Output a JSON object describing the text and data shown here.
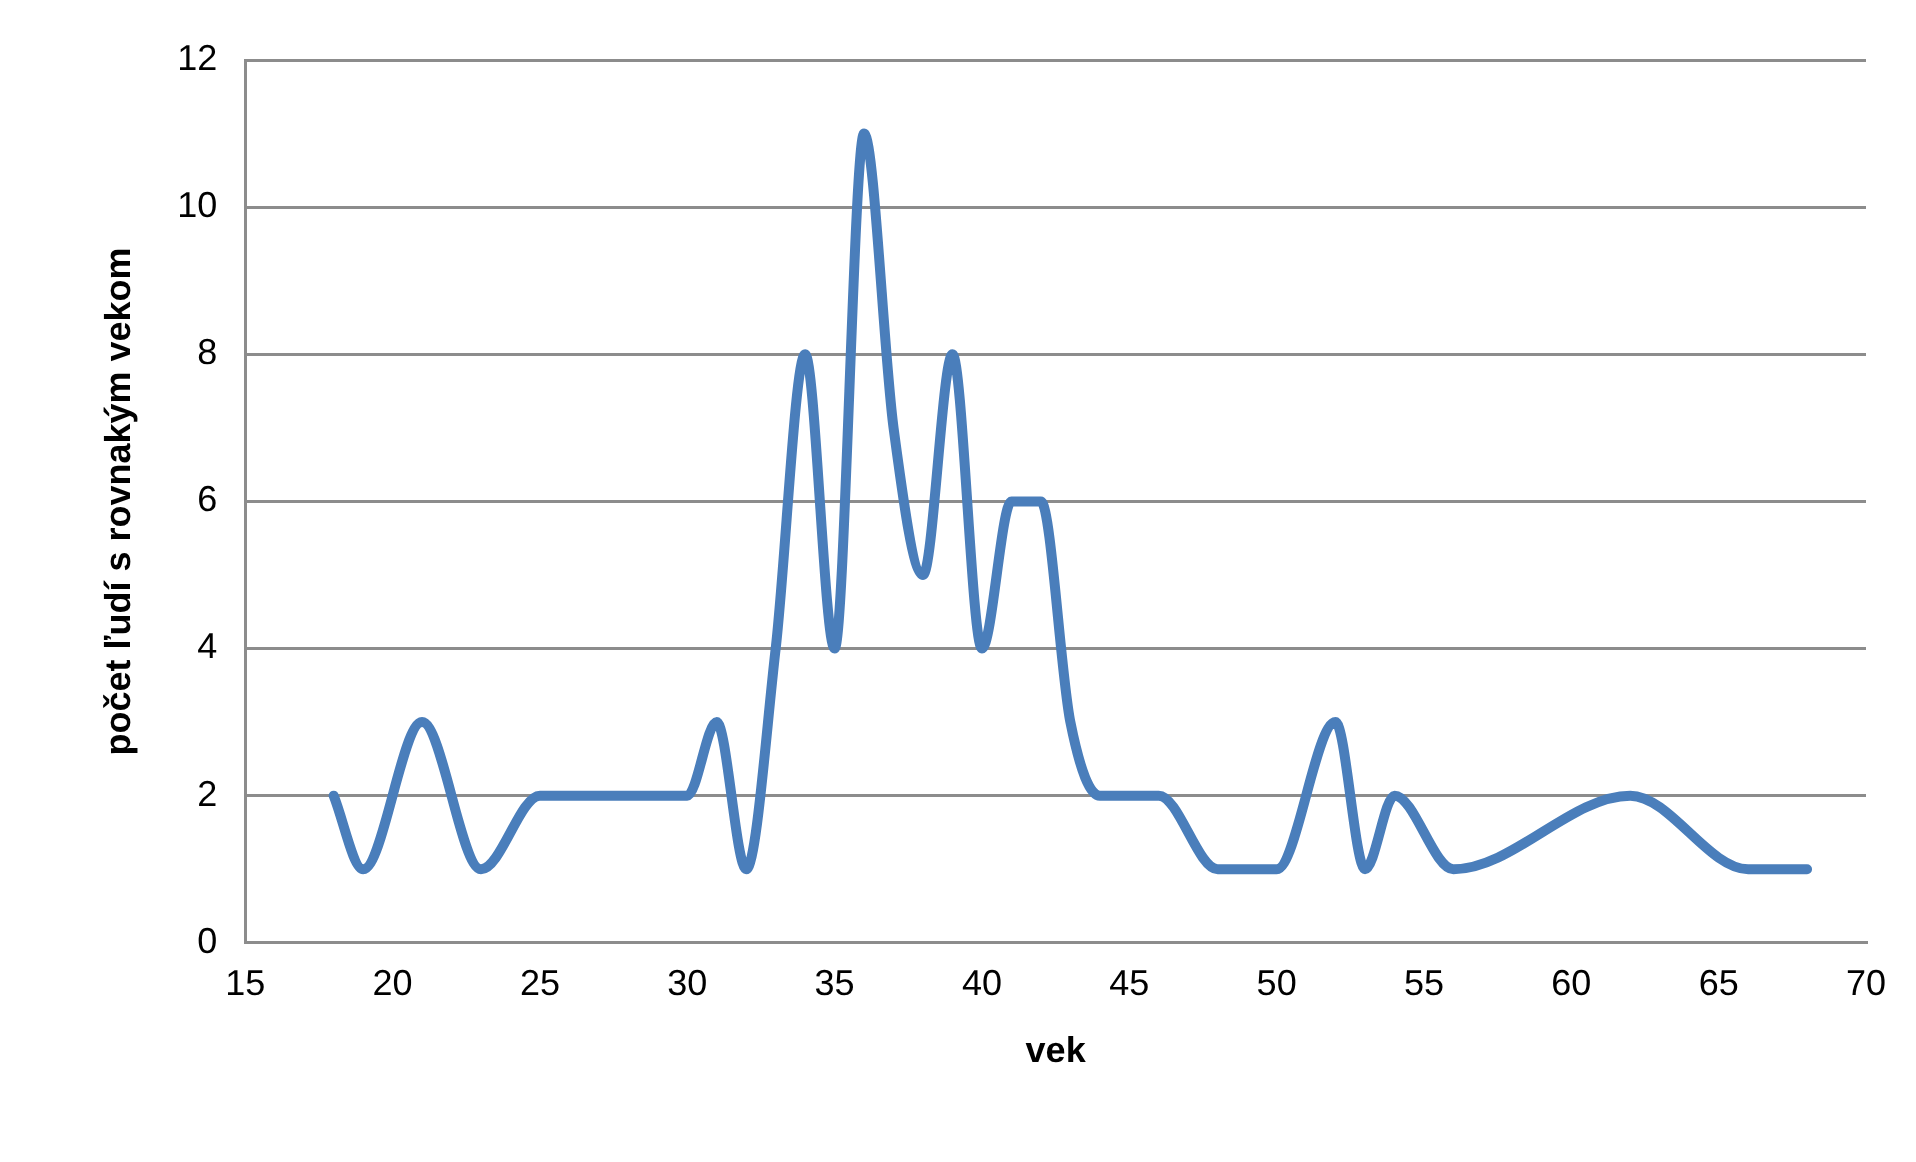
{
  "chart_data": {
    "type": "line",
    "xlabel": "vek",
    "ylabel": "počet ľudí s rovnakým vekom",
    "series": [
      {
        "color": "#4a7ebb",
        "x": [
          18,
          19,
          21,
          23,
          25,
          28,
          30,
          31,
          32,
          33,
          34,
          35,
          36,
          37,
          38,
          39,
          40,
          41,
          42,
          43,
          44,
          46,
          48,
          49,
          50,
          52,
          53,
          54,
          56,
          62,
          66,
          67,
          68
        ],
        "values": [
          2,
          1,
          3,
          1,
          2,
          2,
          2,
          3,
          1,
          4,
          8,
          4,
          11,
          7,
          5,
          8,
          4,
          6,
          6,
          3,
          2,
          2,
          1,
          1,
          1,
          3,
          1,
          2,
          1,
          2,
          1,
          1,
          1
        ]
      }
    ],
    "xlim": [
      15,
      70
    ],
    "xticks": [
      15,
      20,
      25,
      30,
      35,
      40,
      45,
      50,
      55,
      60,
      65,
      70
    ],
    "ylim": [
      0,
      12
    ],
    "yticks": [
      0,
      2,
      4,
      6,
      8,
      10,
      12
    ],
    "grid": "y",
    "legend": false,
    "marker": "none",
    "line_style": "solid"
  }
}
